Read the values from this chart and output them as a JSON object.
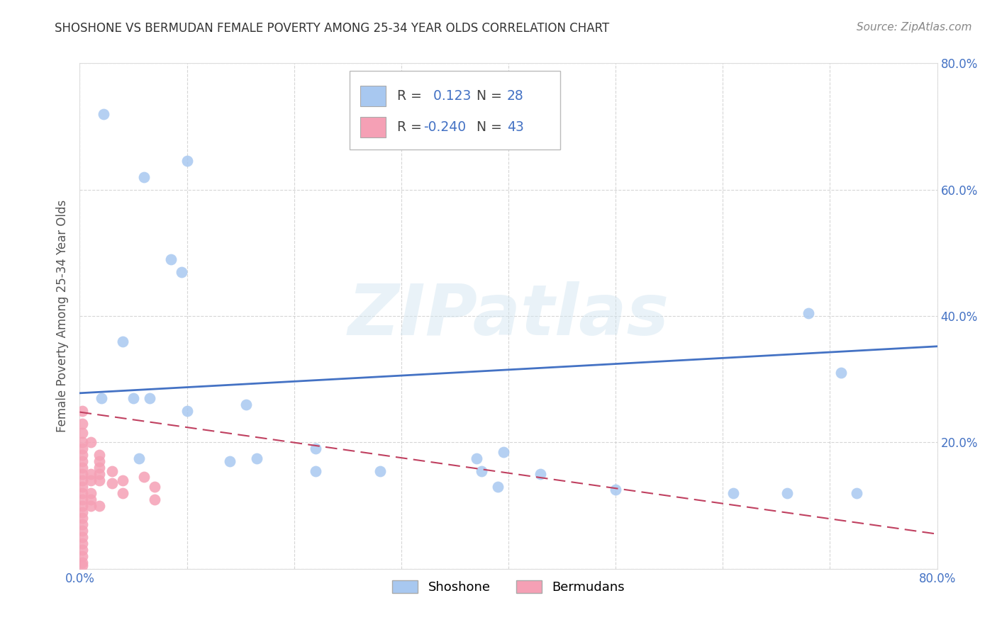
{
  "title": "SHOSHONE VS BERMUDAN FEMALE POVERTY AMONG 25-34 YEAR OLDS CORRELATION CHART",
  "source": "Source: ZipAtlas.com",
  "ylabel": "Female Poverty Among 25-34 Year Olds",
  "xlim": [
    0,
    0.8
  ],
  "ylim": [
    0,
    0.8
  ],
  "shoshone_R": 0.123,
  "shoshone_N": 28,
  "bermudan_R": -0.24,
  "bermudan_N": 43,
  "shoshone_color": "#a8c8f0",
  "bermudan_color": "#f5a0b5",
  "shoshone_line_color": "#4472c4",
  "bermudan_line_color": "#c04060",
  "shoshone_line": [
    [
      0.0,
      0.278
    ],
    [
      0.8,
      0.352
    ]
  ],
  "bermudan_line": [
    [
      0.0,
      0.248
    ],
    [
      0.8,
      0.055
    ]
  ],
  "shoshone_scatter": [
    [
      0.022,
      0.72
    ],
    [
      0.06,
      0.62
    ],
    [
      0.1,
      0.645
    ],
    [
      0.085,
      0.49
    ],
    [
      0.095,
      0.47
    ],
    [
      0.04,
      0.36
    ],
    [
      0.02,
      0.27
    ],
    [
      0.05,
      0.27
    ],
    [
      0.065,
      0.27
    ],
    [
      0.1,
      0.25
    ],
    [
      0.155,
      0.26
    ],
    [
      0.165,
      0.175
    ],
    [
      0.22,
      0.19
    ],
    [
      0.22,
      0.155
    ],
    [
      0.28,
      0.155
    ],
    [
      0.37,
      0.175
    ],
    [
      0.375,
      0.155
    ],
    [
      0.39,
      0.13
    ],
    [
      0.395,
      0.185
    ],
    [
      0.5,
      0.125
    ],
    [
      0.61,
      0.12
    ],
    [
      0.66,
      0.12
    ],
    [
      0.68,
      0.405
    ],
    [
      0.71,
      0.31
    ],
    [
      0.725,
      0.12
    ],
    [
      0.43,
      0.15
    ],
    [
      0.14,
      0.17
    ],
    [
      0.055,
      0.175
    ]
  ],
  "bermudan_scatter": [
    [
      0.002,
      0.25
    ],
    [
      0.002,
      0.23
    ],
    [
      0.002,
      0.215
    ],
    [
      0.002,
      0.2
    ],
    [
      0.002,
      0.19
    ],
    [
      0.002,
      0.18
    ],
    [
      0.002,
      0.17
    ],
    [
      0.002,
      0.16
    ],
    [
      0.002,
      0.15
    ],
    [
      0.002,
      0.14
    ],
    [
      0.002,
      0.13
    ],
    [
      0.002,
      0.12
    ],
    [
      0.002,
      0.11
    ],
    [
      0.002,
      0.1
    ],
    [
      0.002,
      0.09
    ],
    [
      0.002,
      0.08
    ],
    [
      0.002,
      0.07
    ],
    [
      0.002,
      0.06
    ],
    [
      0.002,
      0.05
    ],
    [
      0.002,
      0.04
    ],
    [
      0.002,
      0.03
    ],
    [
      0.002,
      0.02
    ],
    [
      0.002,
      0.01
    ],
    [
      0.002,
      0.005
    ],
    [
      0.01,
      0.2
    ],
    [
      0.01,
      0.15
    ],
    [
      0.01,
      0.14
    ],
    [
      0.01,
      0.12
    ],
    [
      0.01,
      0.11
    ],
    [
      0.01,
      0.1
    ],
    [
      0.018,
      0.18
    ],
    [
      0.018,
      0.17
    ],
    [
      0.018,
      0.16
    ],
    [
      0.018,
      0.15
    ],
    [
      0.018,
      0.14
    ],
    [
      0.018,
      0.1
    ],
    [
      0.03,
      0.155
    ],
    [
      0.03,
      0.135
    ],
    [
      0.04,
      0.14
    ],
    [
      0.04,
      0.12
    ],
    [
      0.06,
      0.145
    ],
    [
      0.07,
      0.13
    ],
    [
      0.07,
      0.11
    ]
  ],
  "watermark_text": "ZIPatlas",
  "background_color": "#ffffff",
  "grid_color": "#cccccc",
  "tick_color": "#4472c4",
  "title_fontsize": 12,
  "source_fontsize": 11,
  "tick_fontsize": 12,
  "ylabel_fontsize": 12
}
